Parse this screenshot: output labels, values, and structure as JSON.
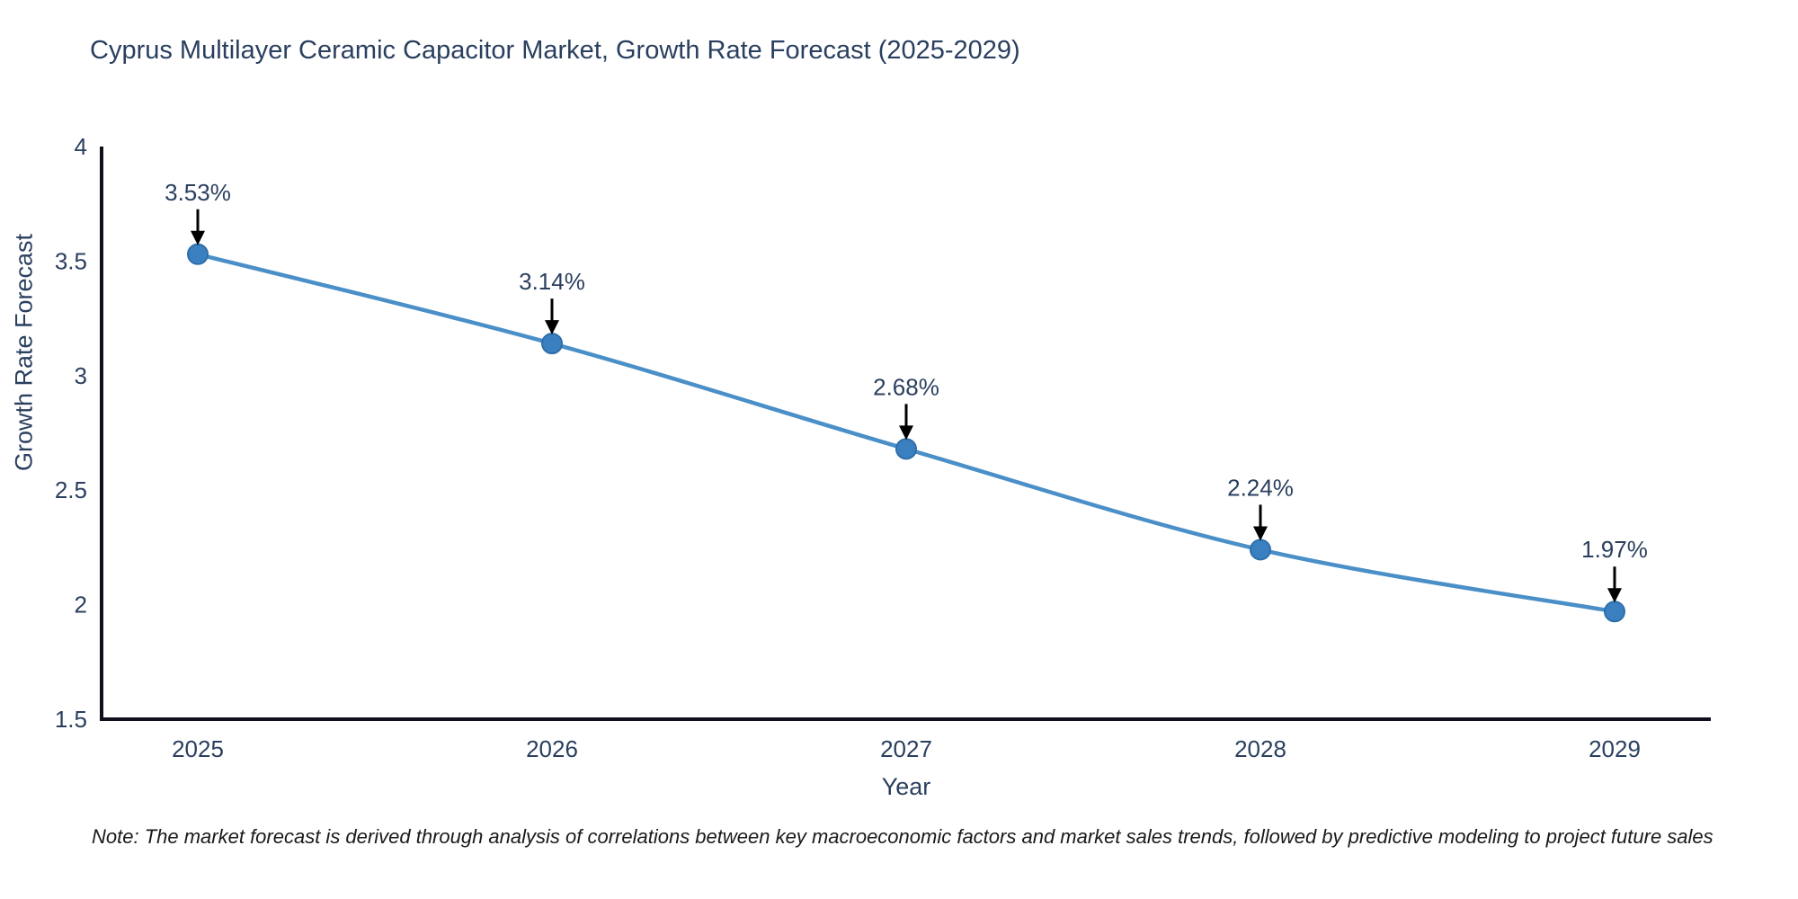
{
  "chart": {
    "title": "Cyprus Multilayer Ceramic Capacitor Market, Growth Rate Forecast (2025-2029)",
    "note": "Note: The market forecast is derived through analysis of correlations between key macroeconomic factors and market sales trends, followed by predictive modeling to project future sales"
  },
  "chart_data": {
    "type": "line",
    "title": "Cyprus Multilayer Ceramic Capacitor Market, Growth Rate Forecast (2025-2029)",
    "xlabel": "Year",
    "ylabel": "Growth Rate Forecast",
    "categories": [
      "2025",
      "2026",
      "2027",
      "2028",
      "2029"
    ],
    "values": [
      3.53,
      3.14,
      2.68,
      2.24,
      1.97
    ],
    "point_labels": [
      "3.53%",
      "3.14%",
      "2.68%",
      "2.24%",
      "1.97%"
    ],
    "ylim": [
      1.5,
      4
    ],
    "yticks": [
      "4",
      "3.5",
      "3",
      "2.5",
      "2",
      "1.5"
    ],
    "ytick_values": [
      4,
      3.5,
      3,
      2.5,
      2,
      1.5
    ],
    "grid": false,
    "legend": false,
    "colors": {
      "line": "#4a8fc7",
      "marker_fill": "#3a80c0",
      "marker_edge": "#2f6ea9",
      "axis_line": "#10101c",
      "tick_text": "#2a3f5f",
      "annotation_text": "#2a3f5f",
      "annotation_arrow": "#000000",
      "background": "#ffffff"
    }
  }
}
